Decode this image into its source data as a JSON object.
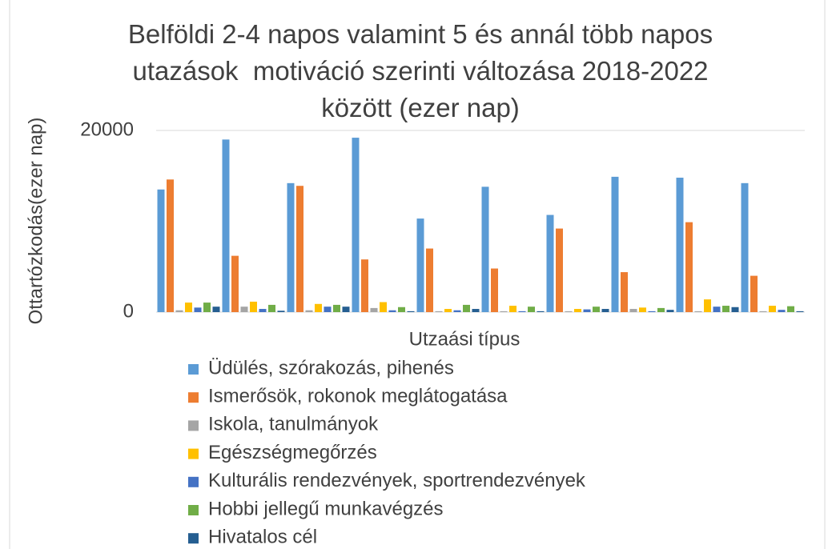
{
  "chart_data": {
    "type": "bar",
    "title": "Belföldi 2-4 napos valamint 5 és annál több napos\nutazások  motiváció szerinti változása 2018-2022\nközött (ezer nap)",
    "x_label": "Utzaási típus",
    "y_label": "Ottartózkodás(ezer nap)",
    "categories": [
      null,
      null,
      null,
      null,
      null,
      null,
      null,
      null,
      null,
      null
    ],
    "series": [
      {
        "name": "Üdülés, szórakozás, pihenés",
        "color": "#5b9bd5",
        "values": [
          13500,
          19000,
          14200,
          19200,
          10300,
          13800,
          10700,
          14900,
          14800,
          14200
        ]
      },
      {
        "name": "Ismerősök, rokonok meglátogatása",
        "color": "#ed7d31",
        "values": [
          14600,
          6200,
          13900,
          5800,
          7000,
          4800,
          9200,
          4400,
          9900,
          4000
        ]
      },
      {
        "name": "Iskola, tanulmányok",
        "color": "#a5a5a5",
        "values": [
          200,
          600,
          200,
          450,
          100,
          100,
          100,
          350,
          100,
          100
        ]
      },
      {
        "name": "Egészségmegőrzés",
        "color": "#ffc000",
        "values": [
          1050,
          1150,
          900,
          1100,
          350,
          700,
          350,
          500,
          1400,
          700
        ]
      },
      {
        "name": "Kulturális rendezvények, sportrendezvények",
        "color": "#4472c4",
        "values": [
          500,
          350,
          600,
          200,
          200,
          100,
          300,
          100,
          600,
          250
        ]
      },
      {
        "name": "Hobbi jellegű munkavégzés",
        "color": "#70ad47",
        "values": [
          1050,
          800,
          800,
          550,
          800,
          600,
          600,
          450,
          700,
          650
        ]
      },
      {
        "name": "Hivatalos cél",
        "color": "#255e91",
        "values": [
          600,
          150,
          600,
          100,
          350,
          100,
          350,
          250,
          550,
          100
        ]
      }
    ],
    "ylim": [
      0,
      20000
    ],
    "yticks": [
      0,
      20000
    ],
    "grid": true,
    "legend": "bottom"
  }
}
